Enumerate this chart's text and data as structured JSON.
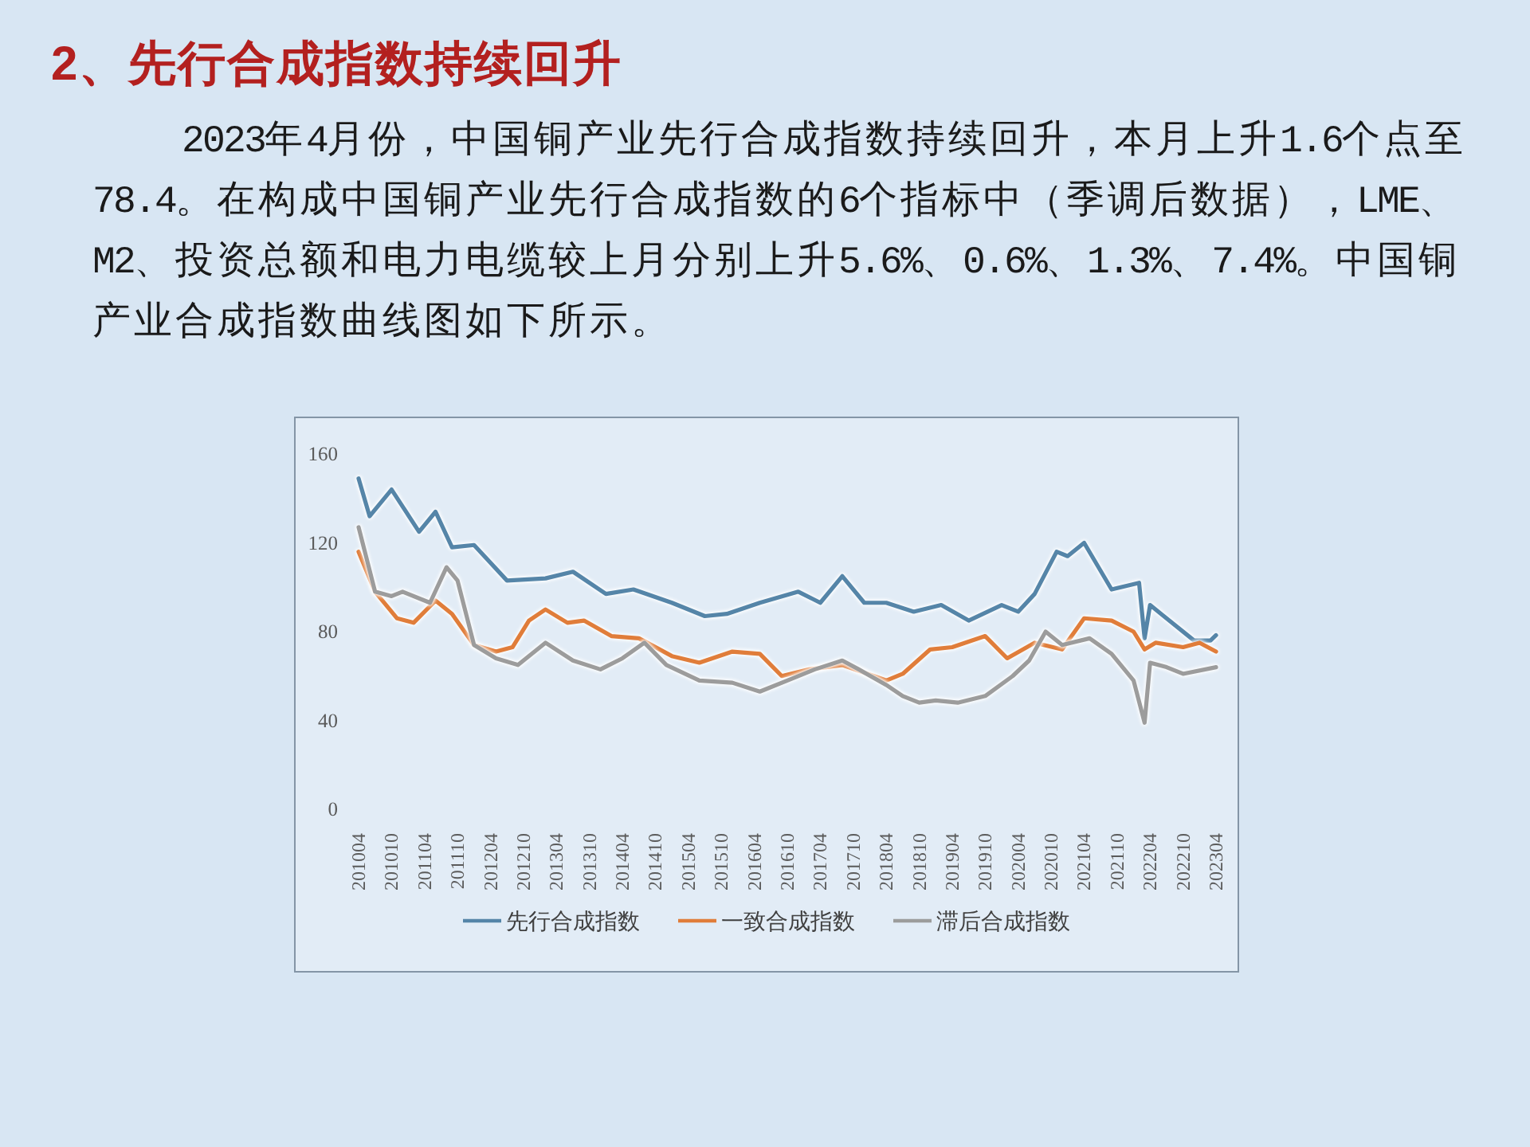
{
  "chart_data": {
    "type": "line",
    "title": "2、先行合成指数持续回升",
    "subtitle": "2023年4月份，中国铜产业先行合成指数持续回升，本月上升1.6个点至78.4。在构成中国铜产业先行合成指数的6个指标中（季调后数据），LME、M2、投资总额和电力电缆较上月分别上升5.6%、0.6%、1.3%、7.4%。中国铜产业合成指数曲线图如下所示。",
    "xlim": [
      "2010-04",
      "2023-04"
    ],
    "xticks": [
      {
        "value": "2010-04",
        "label": "201004"
      },
      {
        "value": "2010-10",
        "label": "201010"
      },
      {
        "value": "2011-04",
        "label": "201104"
      },
      {
        "value": "2011-10",
        "label": "201110"
      },
      {
        "value": "2012-04",
        "label": "201204"
      },
      {
        "value": "2012-10",
        "label": "201210"
      },
      {
        "value": "2013-04",
        "label": "201304"
      },
      {
        "value": "2013-10",
        "label": "201310"
      },
      {
        "value": "2014-04",
        "label": "201404"
      },
      {
        "value": "2014-10",
        "label": "201410"
      },
      {
        "value": "2015-04",
        "label": "201504"
      },
      {
        "value": "2015-10",
        "label": "201510"
      },
      {
        "value": "2016-04",
        "label": "201604"
      },
      {
        "value": "2016-10",
        "label": "201610"
      },
      {
        "value": "2017-04",
        "label": "201704"
      },
      {
        "value": "2017-10",
        "label": "201710"
      },
      {
        "value": "2018-04",
        "label": "201804"
      },
      {
        "value": "2018-10",
        "label": "201810"
      },
      {
        "value": "2019-04",
        "label": "201904"
      },
      {
        "value": "2019-10",
        "label": "201910"
      },
      {
        "value": "2020-04",
        "label": "202004"
      },
      {
        "value": "2020-10",
        "label": "202010"
      },
      {
        "value": "2021-04",
        "label": "202104"
      },
      {
        "value": "2021-10",
        "label": "202110"
      },
      {
        "value": "2022-04",
        "label": "202204"
      },
      {
        "value": "2022-10",
        "label": "202210"
      },
      {
        "value": "2023-04",
        "label": "202304"
      }
    ],
    "ylim": [
      0,
      160
    ],
    "yticks": [
      0,
      40,
      80,
      120,
      160
    ],
    "legend": "bottom",
    "series": [
      {
        "name": "先行合成指数",
        "color": "#5585a8",
        "x": [
          "2010-04",
          "2010-06",
          "2010-10",
          "2011-03",
          "2011-06",
          "2011-09",
          "2012-01",
          "2012-07",
          "2013-02",
          "2013-07",
          "2014-01",
          "2014-06",
          "2015-01",
          "2015-07",
          "2015-11",
          "2016-05",
          "2016-12",
          "2017-04",
          "2017-08",
          "2017-12",
          "2018-04",
          "2018-09",
          "2019-02",
          "2019-07",
          "2020-01",
          "2020-04",
          "2020-07",
          "2020-11",
          "2021-01",
          "2021-04",
          "2021-09",
          "2022-02",
          "2022-03",
          "2022-04",
          "2022-06",
          "2022-12",
          "2023-03",
          "2023-04"
        ],
        "values": [
          149,
          132,
          144,
          125,
          134,
          118,
          119,
          103,
          104,
          107,
          97,
          99,
          93,
          87,
          88,
          93,
          98,
          93,
          105,
          93,
          93,
          89,
          92,
          85,
          92,
          89,
          97,
          116,
          114,
          120,
          99,
          102,
          77,
          92,
          88,
          76,
          76,
          78.4
        ]
      },
      {
        "name": "一致合成指数",
        "color": "#e07d3a",
        "x": [
          "2010-04",
          "2010-07",
          "2010-11",
          "2011-02",
          "2011-06",
          "2011-09",
          "2012-01",
          "2012-05",
          "2012-08",
          "2012-11",
          "2013-02",
          "2013-06",
          "2013-09",
          "2014-02",
          "2014-07",
          "2015-01",
          "2015-06",
          "2015-12",
          "2016-05",
          "2016-09",
          "2017-02",
          "2017-08",
          "2018-04",
          "2018-07",
          "2018-12",
          "2019-04",
          "2019-10",
          "2020-02",
          "2020-07",
          "2020-12",
          "2021-04",
          "2021-09",
          "2022-01",
          "2022-03",
          "2022-05",
          "2022-10",
          "2023-01",
          "2023-04"
        ],
        "values": [
          116,
          98,
          86,
          84,
          94,
          88,
          74,
          71,
          73,
          85,
          90,
          84,
          85,
          78,
          77,
          69,
          66,
          71,
          70,
          60,
          63,
          65,
          58,
          61,
          72,
          73,
          78,
          68,
          75,
          72,
          86,
          85,
          80,
          72,
          75,
          73,
          75,
          71
        ]
      },
      {
        "name": "滞后合成指数",
        "color": "#9c9c9c",
        "x": [
          "2010-04",
          "2010-07",
          "2010-10",
          "2010-12",
          "2011-05",
          "2011-08",
          "2011-10",
          "2012-01",
          "2012-05",
          "2012-09",
          "2013-02",
          "2013-07",
          "2013-12",
          "2014-04",
          "2014-08",
          "2014-12",
          "2015-06",
          "2015-12",
          "2016-05",
          "2016-10",
          "2017-03",
          "2017-08",
          "2017-11",
          "2018-04",
          "2018-07",
          "2018-10",
          "2019-01",
          "2019-05",
          "2019-10",
          "2020-03",
          "2020-06",
          "2020-09",
          "2020-12",
          "2021-05",
          "2021-09",
          "2022-01",
          "2022-03",
          "2022-04",
          "2022-07",
          "2022-10",
          "2023-04"
        ],
        "values": [
          127,
          98,
          96,
          98,
          93,
          109,
          103,
          74,
          68,
          65,
          75,
          67,
          63,
          68,
          75,
          65,
          58,
          57,
          53,
          58,
          63,
          67,
          63,
          56,
          51,
          48,
          49,
          48,
          51,
          60,
          67,
          80,
          74,
          77,
          70,
          58,
          39,
          66,
          64,
          61,
          64
        ]
      }
    ]
  }
}
